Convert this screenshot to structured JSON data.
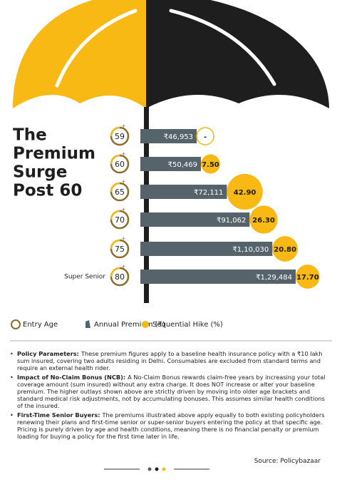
{
  "chart_data": {
    "type": "bar",
    "title_lines": [
      "The",
      "Premium",
      "Surge",
      "Post 60"
    ],
    "categories": [
      "59",
      "60",
      "65",
      "70",
      "75",
      "80"
    ],
    "annotation": "Super Senior",
    "series": [
      {
        "name": "Annual Premium (₹)",
        "color": "#56636b",
        "values": [
          46953,
          50469,
          72111,
          91062,
          110030,
          129484
        ],
        "value_labels": [
          "₹46,953",
          "₹50,469",
          "₹72,111",
          "₹91,062",
          "₹1,10,030",
          "₹1,29,484"
        ]
      },
      {
        "name": "Sequential Hike (%)",
        "color": "#f8b914",
        "values": [
          null,
          7.5,
          42.9,
          26.3,
          20.8,
          17.7
        ],
        "value_labels": [
          "-",
          "7.50",
          "42.90",
          "26.30",
          "20.80",
          "17.70"
        ]
      }
    ],
    "legend_age": "Entry Age"
  },
  "notes": [
    {
      "heading": "Policy Parameters:",
      "text": "These premium figures apply to a baseline health insurance policy with a ₹10 lakh sum insured, covering two adults residing in Delhi. Consumables are excluded from standard terms and require an external health rider."
    },
    {
      "heading": "Impact of No-Claim Bonus (NCB):",
      "text": "A No-Claim Bonus rewards claim-free years by increasing your total coverage amount (sum insured) without any extra charge. It does NOT increase or alter your baseline premium. The higher outlays shown above are strictly driven by moving into older age brackets and standard medical risk adjustments, not by accumulating bonuses. This assumes similar health conditions of the insured."
    },
    {
      "heading": "First-Time Senior Buyers:",
      "text": "The premiums illustrated above apply equally to both existing policyholders renewing their plans and first-time senior or super-senior buyers entering the policy at that specific age. Pricing is purely driven by age and health conditions, meaning there is no financial penalty or premium loading for buying a policy for the first time later in life."
    }
  ],
  "source": "Source: Policybazaar"
}
